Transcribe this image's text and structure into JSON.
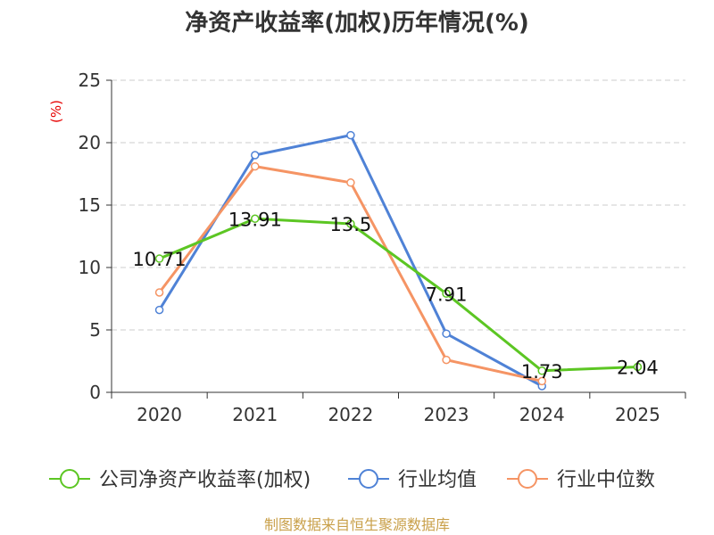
{
  "chart_data": {
    "type": "line",
    "title": "净资产收益率(加权)历年情况(%)",
    "ylabel": "(%)",
    "xlabel": "",
    "categories": [
      "2020",
      "2021",
      "2022",
      "2023",
      "2024",
      "2025"
    ],
    "ylim": [
      0,
      25
    ],
    "yticks": [
      0,
      5,
      10,
      15,
      20,
      25
    ],
    "grid": true,
    "legend_position": "bottom",
    "series": [
      {
        "name": "公司净资产收益率(加权)",
        "color": "#5cc623",
        "values": [
          10.71,
          13.91,
          13.5,
          7.91,
          1.73,
          2.04
        ],
        "labels": [
          "10.71",
          "13.91",
          "13.5",
          "7.91",
          "1.73",
          "2.04"
        ]
      },
      {
        "name": "行业均值",
        "color": "#4f82d6",
        "values": [
          6.6,
          19.0,
          20.6,
          4.7,
          0.5,
          null
        ]
      },
      {
        "name": "行业中位数",
        "color": "#f59464",
        "values": [
          8.0,
          18.1,
          16.8,
          2.6,
          0.9,
          null
        ]
      }
    ],
    "source": "制图数据来自恒生聚源数据库"
  }
}
